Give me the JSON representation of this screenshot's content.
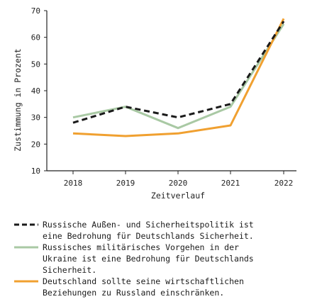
{
  "chart_data": {
    "type": "line",
    "x": [
      "2018",
      "2019",
      "2020",
      "2021",
      "2022"
    ],
    "xlabel": "Zeitverlauf",
    "ylabel": "Zustimmung in Prozent",
    "ylim": [
      10,
      70
    ],
    "yticks": [
      "10",
      "20",
      "30",
      "40",
      "50",
      "60",
      "70"
    ],
    "grid": false,
    "legend_position": "bottom",
    "series": [
      {
        "name": "Russische Außen- und Sicherheitspolitik ist\neine Bedrohung für Deutschlands Sicherheit.",
        "values": [
          28,
          34,
          30,
          35,
          66
        ],
        "color": "#1a1a1a",
        "style": "dashed"
      },
      {
        "name": "Russisches militärisches Vorgehen in der\nUkraine ist eine Bedrohung für Deutschlands\nSicherheit.",
        "values": [
          30,
          34,
          26,
          34,
          65
        ],
        "color": "#a9c9a4",
        "style": "solid"
      },
      {
        "name": "Deutschland sollte seine wirtschaftlichen\nBeziehungen zu Russland einschränken.",
        "values": [
          24,
          23,
          24,
          27,
          67
        ],
        "color": "#f0a030",
        "style": "solid"
      }
    ]
  }
}
